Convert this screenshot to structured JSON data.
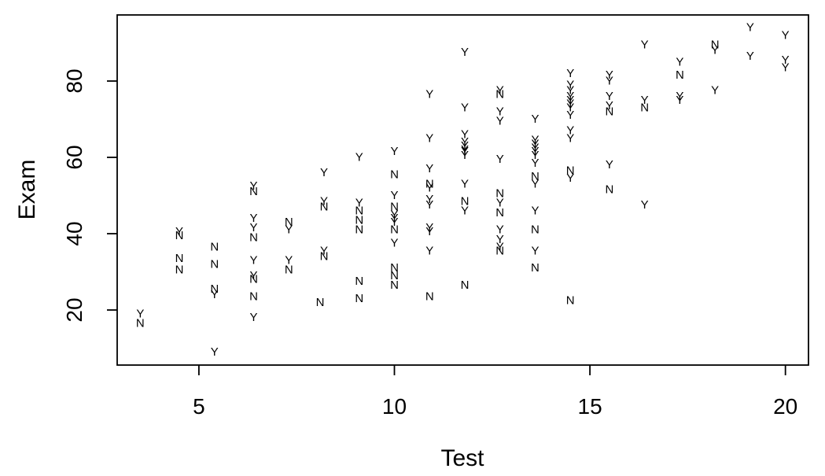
{
  "figure": {
    "background": "#ffffff",
    "axis_color": "#000000"
  },
  "chart_data": {
    "type": "scatter",
    "title": "",
    "xlabel": "Test",
    "ylabel": "Exam",
    "x_ticks": [
      5,
      10,
      15,
      20
    ],
    "y_ticks": [
      20,
      40,
      60,
      80
    ],
    "xlim": [
      2.91,
      20.59
    ],
    "ylim": [
      5.57,
      97.32
    ],
    "grid": false,
    "legend": "none",
    "marker_style": "text-label",
    "series": [
      {
        "name": "Y",
        "label_char": "Y",
        "color": "#0000ff",
        "points": [
          [
            3.5,
            19
          ],
          [
            4.5,
            40.5
          ],
          [
            5.4,
            24
          ],
          [
            5.4,
            9
          ],
          [
            6.4,
            52.5
          ],
          [
            6.4,
            44
          ],
          [
            6.4,
            41.5
          ],
          [
            6.4,
            33
          ],
          [
            6.4,
            29
          ],
          [
            6.4,
            18
          ],
          [
            7.3,
            41
          ],
          [
            7.3,
            33
          ],
          [
            8.2,
            56
          ],
          [
            8.2,
            48.5
          ],
          [
            8.2,
            35.5
          ],
          [
            9.1,
            60
          ],
          [
            9.1,
            48
          ],
          [
            10,
            61.5
          ],
          [
            10,
            50
          ],
          [
            10,
            45
          ],
          [
            10,
            44
          ],
          [
            10,
            43
          ],
          [
            10,
            37.5
          ],
          [
            10.9,
            76.5
          ],
          [
            10.9,
            65
          ],
          [
            10.9,
            57
          ],
          [
            10.9,
            52
          ],
          [
            10.9,
            49
          ],
          [
            10.9,
            47.5
          ],
          [
            10.9,
            41.5
          ],
          [
            10.9,
            40.5
          ],
          [
            10.9,
            35.5
          ],
          [
            11.8,
            87.5
          ],
          [
            11.8,
            73
          ],
          [
            11.8,
            66
          ],
          [
            11.8,
            64
          ],
          [
            11.8,
            63
          ],
          [
            11.8,
            62
          ],
          [
            11.8,
            61.5
          ],
          [
            11.8,
            60.5
          ],
          [
            11.8,
            53
          ],
          [
            11.8,
            46
          ],
          [
            12.7,
            77.5
          ],
          [
            12.7,
            72
          ],
          [
            12.7,
            69.5
          ],
          [
            12.7,
            59.5
          ],
          [
            12.7,
            48
          ],
          [
            12.7,
            41
          ],
          [
            12.7,
            38.5
          ],
          [
            12.7,
            36.5
          ],
          [
            13.6,
            70
          ],
          [
            13.6,
            64.5
          ],
          [
            13.6,
            63.5
          ],
          [
            13.6,
            62.5
          ],
          [
            13.6,
            61.5
          ],
          [
            13.6,
            60.5
          ],
          [
            13.6,
            58.5
          ],
          [
            13.6,
            53
          ],
          [
            13.6,
            46
          ],
          [
            13.6,
            35.5
          ],
          [
            14.5,
            82
          ],
          [
            14.5,
            79
          ],
          [
            14.5,
            77.5
          ],
          [
            14.5,
            76
          ],
          [
            14.5,
            75
          ],
          [
            14.5,
            74
          ],
          [
            14.5,
            73
          ],
          [
            14.5,
            71
          ],
          [
            14.5,
            67
          ],
          [
            14.5,
            65
          ],
          [
            14.5,
            54.5
          ],
          [
            15.5,
            81.5
          ],
          [
            15.5,
            80
          ],
          [
            15.5,
            76
          ],
          [
            15.5,
            73.5
          ],
          [
            15.5,
            58
          ],
          [
            16.4,
            89.5
          ],
          [
            16.4,
            75
          ],
          [
            16.4,
            47.5
          ],
          [
            17.3,
            85
          ],
          [
            17.3,
            76
          ],
          [
            17.3,
            75
          ],
          [
            18.2,
            88
          ],
          [
            18.2,
            77.5
          ],
          [
            19.1,
            94
          ],
          [
            19.1,
            86.5
          ],
          [
            20,
            92
          ],
          [
            20,
            85.5
          ],
          [
            20,
            83.5
          ]
        ]
      },
      {
        "name": "N",
        "label_char": "N",
        "color": "#ff0000",
        "points": [
          [
            3.5,
            16.5
          ],
          [
            4.5,
            39.5
          ],
          [
            4.5,
            33.5
          ],
          [
            4.5,
            30.5
          ],
          [
            5.4,
            36.5
          ],
          [
            5.4,
            32
          ],
          [
            5.4,
            25.5
          ],
          [
            6.4,
            51
          ],
          [
            6.4,
            39
          ],
          [
            6.4,
            28
          ],
          [
            6.4,
            23.5
          ],
          [
            7.3,
            43
          ],
          [
            7.3,
            30.5
          ],
          [
            8.2,
            47
          ],
          [
            8.2,
            34
          ],
          [
            8.1,
            22
          ],
          [
            9.1,
            46
          ],
          [
            9.1,
            43.5
          ],
          [
            9.1,
            41
          ],
          [
            9.1,
            27.5
          ],
          [
            9.1,
            23
          ],
          [
            10,
            55.5
          ],
          [
            10,
            47
          ],
          [
            10,
            41
          ],
          [
            10,
            31
          ],
          [
            10,
            29
          ],
          [
            10,
            26.5
          ],
          [
            10.9,
            53
          ],
          [
            10.9,
            23.5
          ],
          [
            11.8,
            48.5
          ],
          [
            11.8,
            26.5
          ],
          [
            12.7,
            76.5
          ],
          [
            12.7,
            50.5
          ],
          [
            12.7,
            45.5
          ],
          [
            12.7,
            35.5
          ],
          [
            13.6,
            55
          ],
          [
            13.6,
            41
          ],
          [
            13.6,
            31
          ],
          [
            14.5,
            56.5
          ],
          [
            14.5,
            22.5
          ],
          [
            15.5,
            72
          ],
          [
            15.5,
            51.5
          ],
          [
            16.4,
            73
          ],
          [
            17.3,
            81.5
          ],
          [
            18.2,
            89.5
          ]
        ]
      }
    ]
  }
}
